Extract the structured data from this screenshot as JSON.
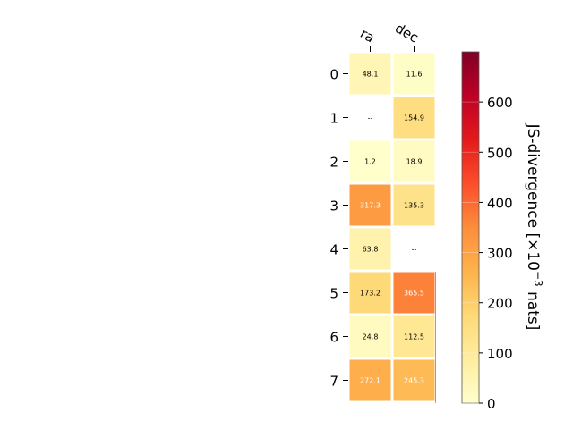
{
  "chart_data": {
    "type": "heatmap",
    "columns": [
      "ra",
      "dec"
    ],
    "rows": [
      "0",
      "1",
      "2",
      "3",
      "4",
      "5",
      "6",
      "7"
    ],
    "values": [
      [
        48.1,
        11.6
      ],
      [
        null,
        154.9
      ],
      [
        1.2,
        18.9
      ],
      [
        317.3,
        135.3
      ],
      [
        63.8,
        null
      ],
      [
        173.2,
        365.5
      ],
      [
        24.8,
        112.5
      ],
      [
        272.1,
        245.3
      ]
    ],
    "cell_labels": [
      [
        "48.1",
        "11.6"
      ],
      [
        "--",
        "154.9"
      ],
      [
        "1.2",
        "18.9"
      ],
      [
        "317.3",
        "135.3"
      ],
      [
        "63.8",
        "--"
      ],
      [
        "173.2",
        "365.5"
      ],
      [
        "24.8",
        "112.5"
      ],
      [
        "272.1",
        "245.3"
      ]
    ],
    "colorbar": {
      "min": 0,
      "max": 700,
      "ticks": [
        "0",
        "100",
        "200",
        "300",
        "400",
        "500",
        "600"
      ],
      "label_main": "JS-divergence [×10",
      "label_exp": "−3",
      "label_tail": " nats]",
      "colormap": "YlOrRd"
    },
    "grid": false
  }
}
